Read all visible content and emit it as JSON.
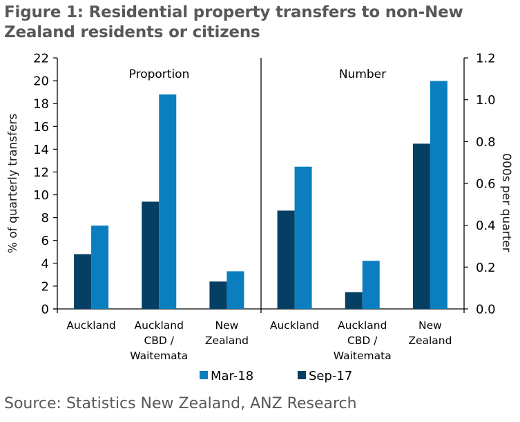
{
  "title": "Figure 1: Residential property transfers to non-New Zealand residents or citizens",
  "title_lines": [
    "Figure 1: Residential property transfers to non-New",
    "Zealand residents or citizens"
  ],
  "source": "Source: Statistics New Zealand, ANZ Research",
  "colors": {
    "mar18": "#0a7ebf",
    "sep17": "#053f63",
    "axis": "#000000",
    "text_gray": "#58585a"
  },
  "chart_data": {
    "type": "bar",
    "title": "Figure 1: Residential property transfers to non-New Zealand residents or citizens",
    "panels": [
      {
        "label": "Proportion",
        "axis": "left",
        "categories": [
          [
            "Auckland"
          ],
          [
            "Auckland",
            "CBD /",
            "Waitemata"
          ],
          [
            "New",
            "Zealand"
          ]
        ],
        "series": [
          {
            "name": "Sep-17",
            "values": [
              4.8,
              9.4,
              2.4
            ]
          },
          {
            "name": "Mar-18",
            "values": [
              7.3,
              18.8,
              3.3
            ]
          }
        ]
      },
      {
        "label": "Number",
        "axis": "right",
        "categories": [
          [
            "Auckland"
          ],
          [
            "Auckland",
            "CBD /",
            "Waitemata"
          ],
          [
            "New",
            "Zealand"
          ]
        ],
        "series": [
          {
            "name": "Sep-17",
            "values": [
              0.47,
              0.08,
              0.79
            ]
          },
          {
            "name": "Mar-18",
            "values": [
              0.68,
              0.23,
              1.09
            ]
          }
        ]
      }
    ],
    "left_axis": {
      "label": "% of quarterly transfers",
      "ylim": [
        0,
        22
      ],
      "ticks": [
        "0",
        "2",
        "4",
        "6",
        "8",
        "10",
        "12",
        "14",
        "16",
        "18",
        "20",
        "22"
      ]
    },
    "right_axis": {
      "label": "000s per quarter",
      "ylim": [
        0,
        1.2
      ],
      "ticks": [
        "0.0",
        "0.2",
        "0.4",
        "0.6",
        "0.8",
        "1.0",
        "1.2"
      ]
    },
    "legend": {
      "placement": "bottom",
      "entries": [
        "Mar-18",
        "Sep-17"
      ]
    },
    "grid": false
  }
}
